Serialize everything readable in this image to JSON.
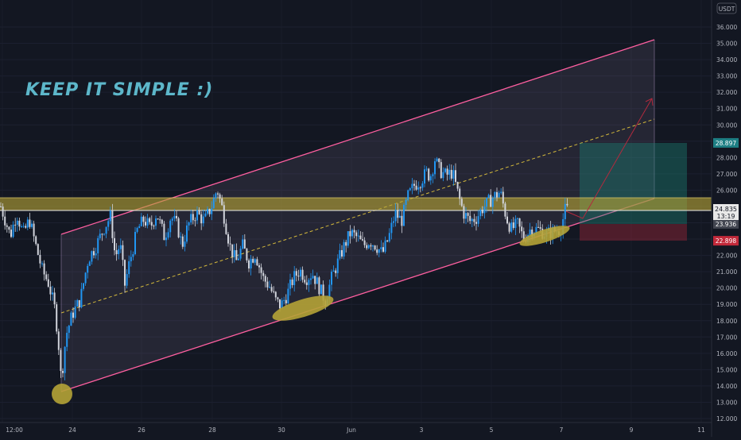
{
  "chart_data": {
    "type": "candlestick",
    "title": "KEEP IT SIMPLE :)",
    "currency": "USDT",
    "y_axis": {
      "min": 12,
      "max": 37,
      "ticks": [
        12,
        13,
        14,
        15,
        16,
        17,
        18,
        19,
        20,
        21,
        22,
        23,
        24,
        25,
        26,
        27,
        28,
        29,
        30,
        31,
        32,
        33,
        34,
        35,
        36
      ],
      "tick_labels": [
        "12.000",
        "13.000",
        "14.000",
        "15.000",
        "16.000",
        "17.000",
        "18.000",
        "19.000",
        "20.000",
        "21.000",
        "22.000",
        "23.000",
        "24.000",
        "25.000",
        "26.000",
        "27.000",
        "28.000",
        "29.000",
        "30.000",
        "31.000",
        "32.000",
        "33.000",
        "34.000",
        "35.000",
        "36.000"
      ]
    },
    "x_axis": {
      "tick_labels": [
        "12:00",
        "24",
        "26",
        "28",
        "30",
        "Jun",
        "3",
        "5",
        "7",
        "9",
        "11"
      ]
    },
    "price_key_points": [
      [
        0,
        25.0
      ],
      [
        12,
        23.2
      ],
      [
        20,
        24.6
      ],
      [
        28,
        23.3
      ],
      [
        36,
        24.2
      ],
      [
        44,
        22.6
      ],
      [
        52,
        21.1
      ],
      [
        60,
        20.3
      ],
      [
        68,
        18.7
      ],
      [
        72,
        17.0
      ],
      [
        76,
        14.3
      ],
      [
        82,
        17.1
      ],
      [
        90,
        18.4
      ],
      [
        100,
        19.3
      ],
      [
        110,
        21.8
      ],
      [
        120,
        22.6
      ],
      [
        130,
        23.7
      ],
      [
        138,
        24.4
      ],
      [
        144,
        21.9
      ],
      [
        150,
        22.7
      ],
      [
        156,
        20.2
      ],
      [
        162,
        21.6
      ],
      [
        172,
        23.6
      ],
      [
        180,
        24.2
      ],
      [
        188,
        23.7
      ],
      [
        196,
        24.6
      ],
      [
        206,
        23.1
      ],
      [
        214,
        24.4
      ],
      [
        222,
        23.8
      ],
      [
        228,
        22.6
      ],
      [
        236,
        23.9
      ],
      [
        246,
        24.6
      ],
      [
        256,
        24.1
      ],
      [
        266,
        25.1
      ],
      [
        272,
        26.1
      ],
      [
        280,
        24.6
      ],
      [
        288,
        22.6
      ],
      [
        296,
        21.6
      ],
      [
        304,
        22.6
      ],
      [
        312,
        21.6
      ],
      [
        320,
        22.1
      ],
      [
        330,
        20.6
      ],
      [
        338,
        20.1
      ],
      [
        346,
        19.2
      ],
      [
        352,
        18.9
      ],
      [
        360,
        19.6
      ],
      [
        368,
        20.6
      ],
      [
        376,
        21.1
      ],
      [
        384,
        20.6
      ],
      [
        392,
        20.9
      ],
      [
        400,
        20.1
      ],
      [
        408,
        19.2
      ],
      [
        416,
        20.6
      ],
      [
        424,
        21.6
      ],
      [
        432,
        22.6
      ],
      [
        440,
        23.4
      ],
      [
        448,
        23.1
      ],
      [
        456,
        22.6
      ],
      [
        464,
        22.9
      ],
      [
        472,
        22.6
      ],
      [
        480,
        22.1
      ],
      [
        488,
        23.1
      ],
      [
        496,
        24.6
      ],
      [
        504,
        24.1
      ],
      [
        512,
        25.6
      ],
      [
        520,
        26.3
      ],
      [
        528,
        26.6
      ],
      [
        536,
        27.1
      ],
      [
        540,
        26.8
      ],
      [
        546,
        27.9
      ],
      [
        552,
        27.2
      ],
      [
        560,
        26.9
      ],
      [
        568,
        27.1
      ],
      [
        576,
        25.6
      ],
      [
        582,
        24.6
      ],
      [
        590,
        24.1
      ],
      [
        598,
        24.3
      ],
      [
        606,
        24.9
      ],
      [
        614,
        25.3
      ],
      [
        620,
        25.6
      ],
      [
        628,
        25.9
      ],
      [
        636,
        24.3
      ],
      [
        642,
        23.6
      ],
      [
        650,
        23.9
      ],
      [
        658,
        23.0
      ],
      [
        666,
        23.6
      ],
      [
        676,
        23.6
      ],
      [
        686,
        23.3
      ],
      [
        696,
        23.5
      ],
      [
        704,
        23.6
      ],
      [
        710,
        24.8
      ],
      [
        714,
        24.8
      ]
    ],
    "current_price": "24.835",
    "countdown": "13:19",
    "price_labels": [
      {
        "value": 28.897,
        "text": "28.897",
        "color": "#1e7f84"
      },
      {
        "value": 23.936,
        "text": "23.936",
        "color": "#434651"
      },
      {
        "value": 22.898,
        "text": "22.898",
        "color": "#c2293a"
      }
    ],
    "resistance_zone": {
      "from": 24.6,
      "to": 25.6
    },
    "channel": {
      "line_color": "#ff5fa0",
      "fill": "#a48ab5"
    },
    "colors": {
      "up": "#2196f3",
      "down": "#d1d4dc",
      "highlight": "#b5a336",
      "text": "#5db7ca",
      "arrow": "#b22a3e"
    }
  }
}
